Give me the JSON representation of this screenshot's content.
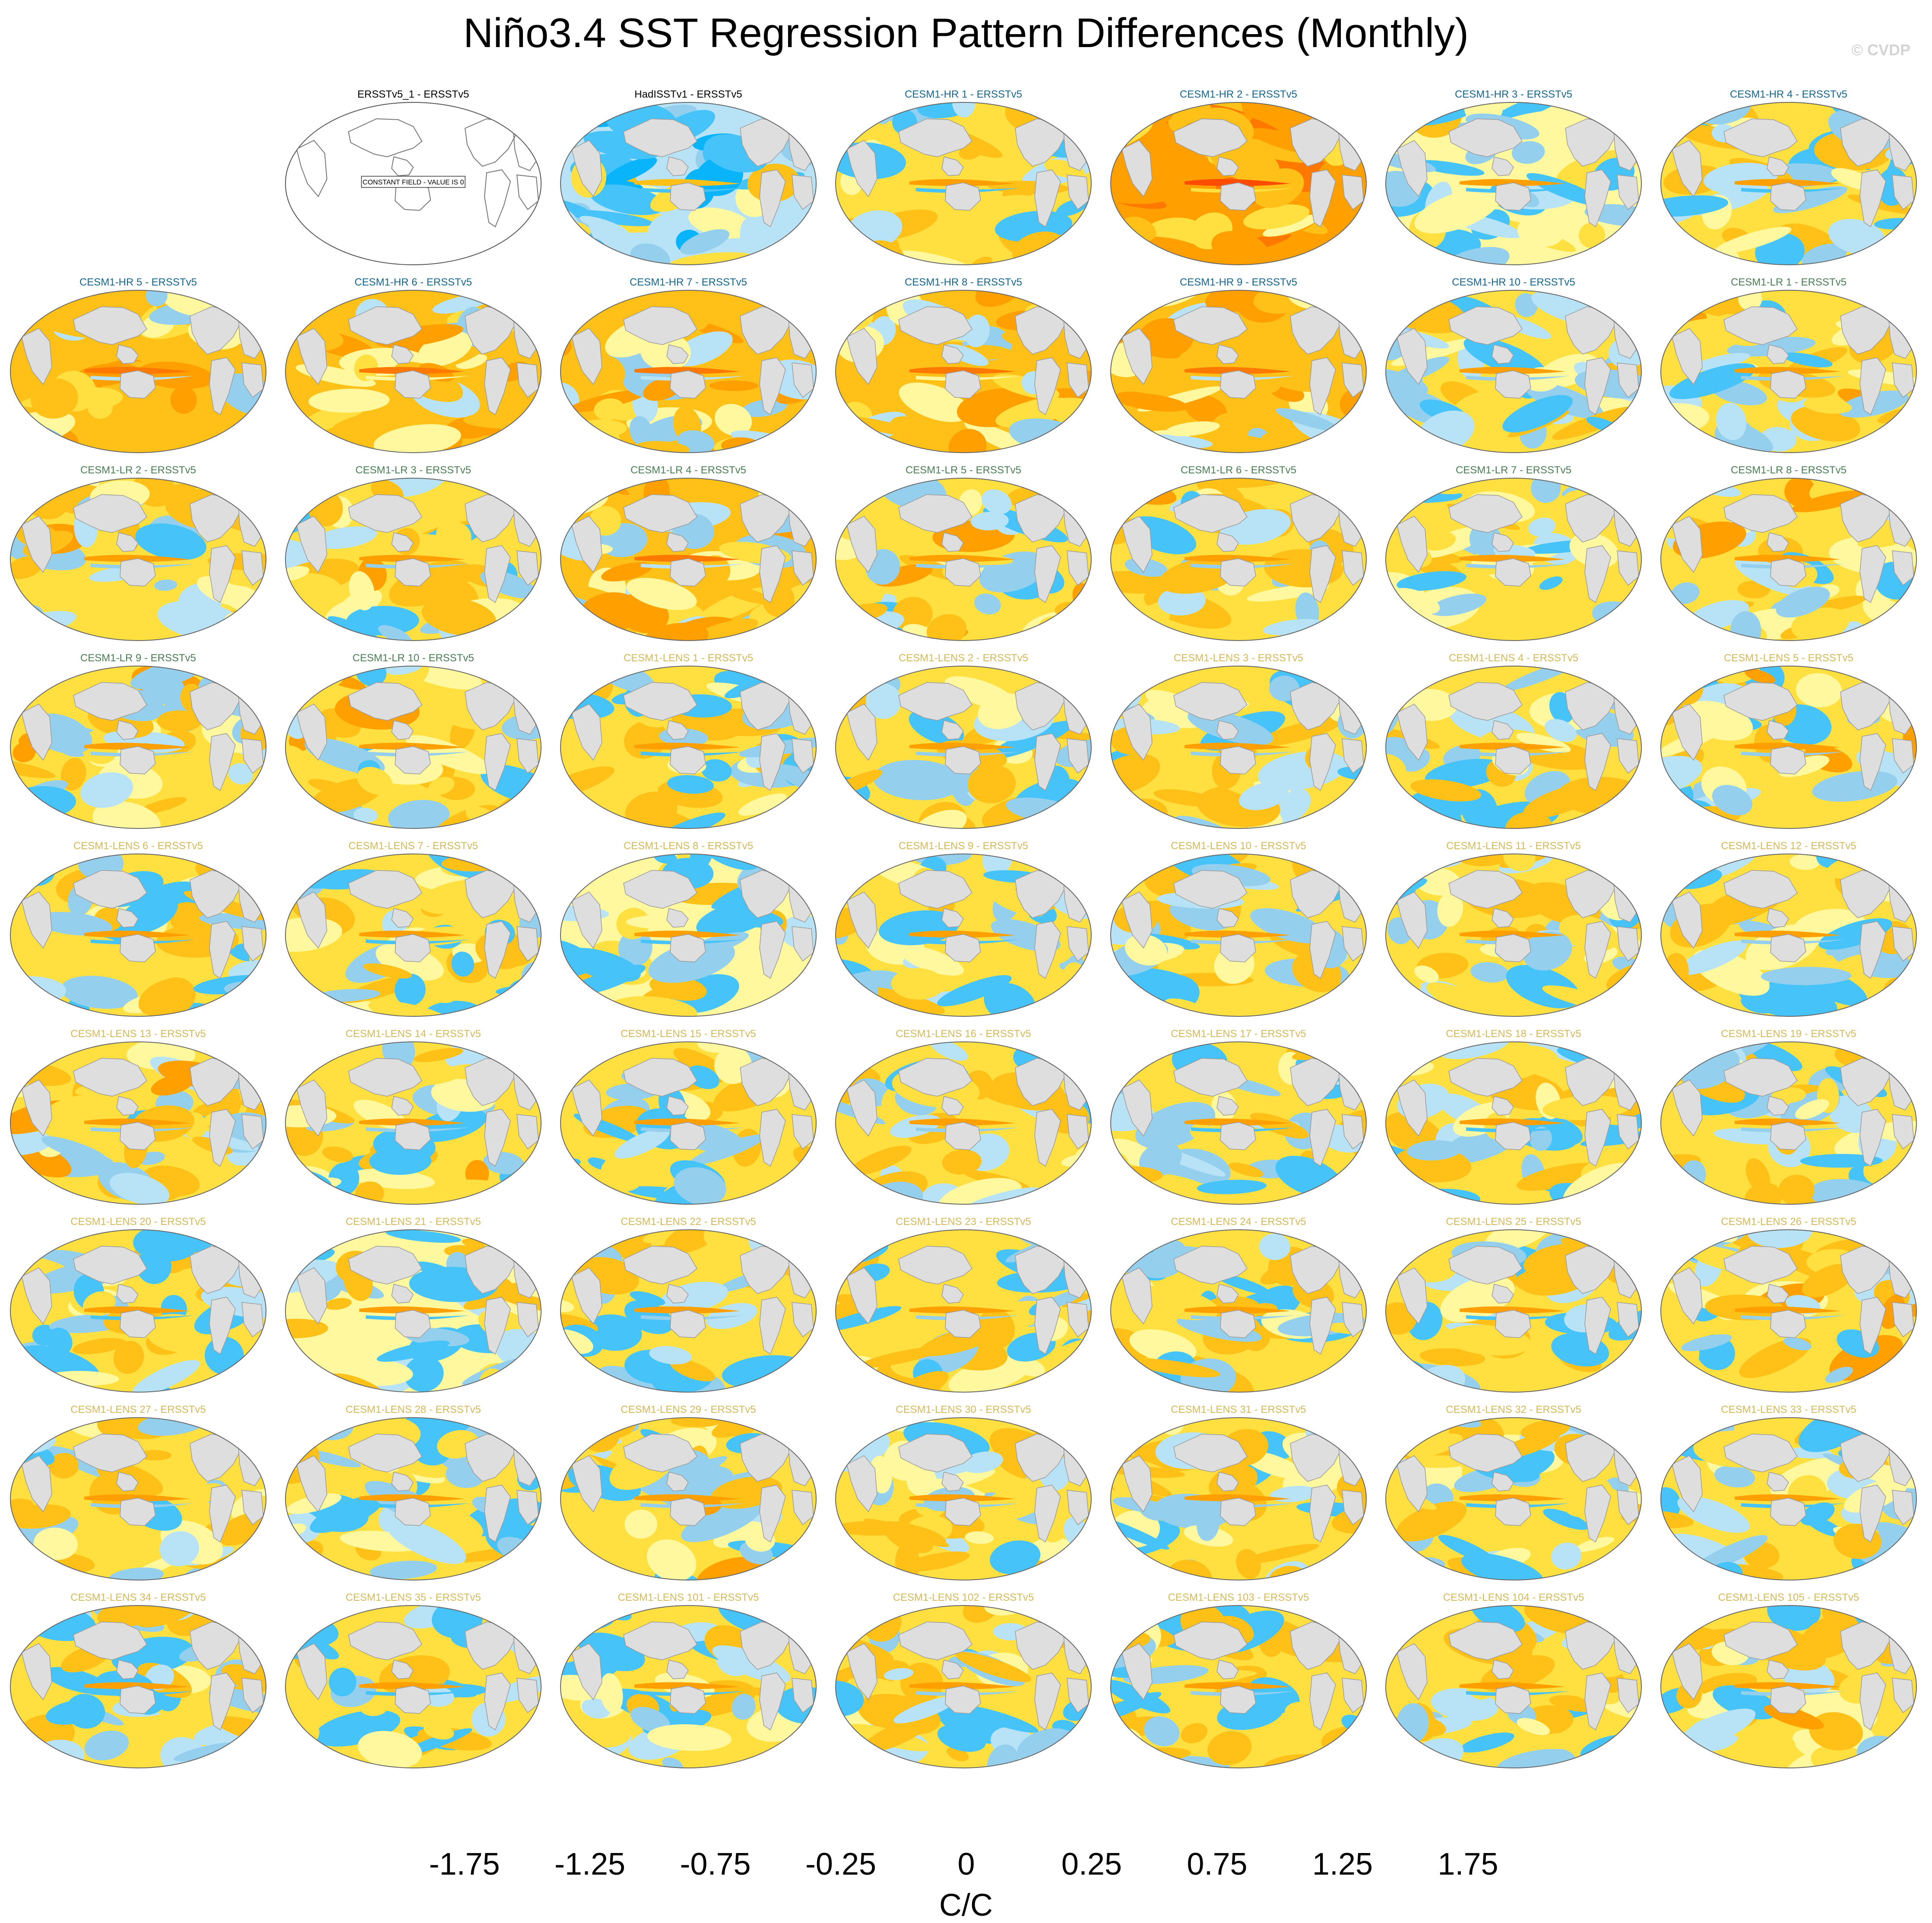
{
  "title": "Niño3.4 SST Regression Pattern Differences (Monthly)",
  "watermark": "© CVDP",
  "chart_data": {
    "type": "heatmap",
    "description_units": "C/C",
    "colorbar": {
      "unit_label": "C/C",
      "tick_labels": [
        "-1.75",
        "-1.25",
        "-0.75",
        "-0.25",
        "0",
        "0.25",
        "0.75",
        "1.25",
        "1.75"
      ],
      "colors": [
        "#7f20f0",
        "#3a10f4",
        "#1a2ef4",
        "#3960e0",
        "#2f74ea",
        "#2294f6",
        "#0ab4fa",
        "#46c4fa",
        "#94d0ee",
        "#b8e2f6",
        "#fff89e",
        "#ffe040",
        "#ffc018",
        "#ffa000",
        "#ff7800",
        "#ff4c00",
        "#ff0000",
        "#d40000",
        "#d83838",
        "#ffb4b4"
      ]
    },
    "title_colors": {
      "obs": "#000000",
      "CESM1-HR": "#17658a",
      "CESM1-LR": "#4a7d54",
      "CESM1-LENS": "#d4b95a"
    },
    "constant_field_text": "CONSTANT FIELD - VALUE IS 0",
    "panels": [
      {
        "label": "ERSSTv5_1 - ERSSTv5",
        "group": "obs",
        "constant": true
      },
      {
        "label": "HadISSTv1 - ERSSTv5",
        "group": "obs",
        "bias": -0.1
      },
      {
        "label": "CESM1-HR 1 - ERSSTv5",
        "group": "CESM1-HR",
        "bias": 0.05
      },
      {
        "label": "CESM1-HR 2 - ERSSTv5",
        "group": "CESM1-HR",
        "bias": 0.55
      },
      {
        "label": "CESM1-HR 3 - ERSSTv5",
        "group": "CESM1-HR",
        "bias": 0.0
      },
      {
        "label": "CESM1-HR 4 - ERSSTv5",
        "group": "CESM1-HR",
        "bias": 0.05
      },
      {
        "label": "CESM1-HR 5 - ERSSTv5",
        "group": "CESM1-HR",
        "bias": 0.25
      },
      {
        "label": "CESM1-HR 6 - ERSSTv5",
        "group": "CESM1-HR",
        "bias": 0.35
      },
      {
        "label": "CESM1-HR 7 - ERSSTv5",
        "group": "CESM1-HR",
        "bias": 0.3
      },
      {
        "label": "CESM1-HR 8 - ERSSTv5",
        "group": "CESM1-HR",
        "bias": 0.35
      },
      {
        "label": "CESM1-HR 9 - ERSSTv5",
        "group": "CESM1-HR",
        "bias": 0.3
      },
      {
        "label": "CESM1-HR 10 - ERSSTv5",
        "group": "CESM1-HR",
        "bias": 0.1
      },
      {
        "label": "CESM1-LR 1 - ERSSTv5",
        "group": "CESM1-LR",
        "bias": 0.15
      },
      {
        "label": "CESM1-LR 2 - ERSSTv5",
        "group": "CESM1-LR",
        "bias": 0.15
      },
      {
        "label": "CESM1-LR 3 - ERSSTv5",
        "group": "CESM1-LR",
        "bias": 0.15
      },
      {
        "label": "CESM1-LR 4 - ERSSTv5",
        "group": "CESM1-LR",
        "bias": 0.25
      },
      {
        "label": "CESM1-LR 5 - ERSSTv5",
        "group": "CESM1-LR",
        "bias": 0.15
      },
      {
        "label": "CESM1-LR 6 - ERSSTv5",
        "group": "CESM1-LR",
        "bias": 0.15
      },
      {
        "label": "CESM1-LR 7 - ERSSTv5",
        "group": "CESM1-LR",
        "bias": 0.15
      },
      {
        "label": "CESM1-LR 8 - ERSSTv5",
        "group": "CESM1-LR",
        "bias": 0.15
      },
      {
        "label": "CESM1-LR 9 - ERSSTv5",
        "group": "CESM1-LR",
        "bias": 0.15
      },
      {
        "label": "CESM1-LR 10 - ERSSTv5",
        "group": "CESM1-LR",
        "bias": 0.15
      },
      {
        "label": "CESM1-LENS 1 - ERSSTv5",
        "group": "CESM1-LENS",
        "bias": 0.05
      },
      {
        "label": "CESM1-LENS 2 - ERSSTv5",
        "group": "CESM1-LENS",
        "bias": 0.1
      },
      {
        "label": "CESM1-LENS 3 - ERSSTv5",
        "group": "CESM1-LENS",
        "bias": 0.1
      },
      {
        "label": "CESM1-LENS 4 - ERSSTv5",
        "group": "CESM1-LENS",
        "bias": 0.1
      },
      {
        "label": "CESM1-LENS 5 - ERSSTv5",
        "group": "CESM1-LENS",
        "bias": 0.15
      },
      {
        "label": "CESM1-LENS 6 - ERSSTv5",
        "group": "CESM1-LENS",
        "bias": 0.05
      },
      {
        "label": "CESM1-LENS 7 - ERSSTv5",
        "group": "CESM1-LENS",
        "bias": 0.05
      },
      {
        "label": "CESM1-LENS 8 - ERSSTv5",
        "group": "CESM1-LENS",
        "bias": 0.0
      },
      {
        "label": "CESM1-LENS 9 - ERSSTv5",
        "group": "CESM1-LENS",
        "bias": 0.05
      },
      {
        "label": "CESM1-LENS 10 - ERSSTv5",
        "group": "CESM1-LENS",
        "bias": 0.1
      },
      {
        "label": "CESM1-LENS 11 - ERSSTv5",
        "group": "CESM1-LENS",
        "bias": 0.1
      },
      {
        "label": "CESM1-LENS 12 - ERSSTv5",
        "group": "CESM1-LENS",
        "bias": 0.1
      },
      {
        "label": "CESM1-LENS 13 - ERSSTv5",
        "group": "CESM1-LENS",
        "bias": 0.15
      },
      {
        "label": "CESM1-LENS 14 - ERSSTv5",
        "group": "CESM1-LENS",
        "bias": 0.1
      },
      {
        "label": "CESM1-LENS 15 - ERSSTv5",
        "group": "CESM1-LENS",
        "bias": 0.1
      },
      {
        "label": "CESM1-LENS 16 - ERSSTv5",
        "group": "CESM1-LENS",
        "bias": 0.1
      },
      {
        "label": "CESM1-LENS 17 - ERSSTv5",
        "group": "CESM1-LENS",
        "bias": 0.05
      },
      {
        "label": "CESM1-LENS 18 - ERSSTv5",
        "group": "CESM1-LENS",
        "bias": 0.05
      },
      {
        "label": "CESM1-LENS 19 - ERSSTv5",
        "group": "CESM1-LENS",
        "bias": 0.1
      },
      {
        "label": "CESM1-LENS 20 - ERSSTv5",
        "group": "CESM1-LENS",
        "bias": 0.05
      },
      {
        "label": "CESM1-LENS 21 - ERSSTv5",
        "group": "CESM1-LENS",
        "bias": 0.0
      },
      {
        "label": "CESM1-LENS 22 - ERSSTv5",
        "group": "CESM1-LENS",
        "bias": 0.1
      },
      {
        "label": "CESM1-LENS 23 - ERSSTv5",
        "group": "CESM1-LENS",
        "bias": 0.1
      },
      {
        "label": "CESM1-LENS 24 - ERSSTv5",
        "group": "CESM1-LENS",
        "bias": 0.1
      },
      {
        "label": "CESM1-LENS 25 - ERSSTv5",
        "group": "CESM1-LENS",
        "bias": 0.05
      },
      {
        "label": "CESM1-LENS 26 - ERSSTv5",
        "group": "CESM1-LENS",
        "bias": 0.15
      },
      {
        "label": "CESM1-LENS 27 - ERSSTv5",
        "group": "CESM1-LENS",
        "bias": 0.1
      },
      {
        "label": "CESM1-LENS 28 - ERSSTv5",
        "group": "CESM1-LENS",
        "bias": 0.05
      },
      {
        "label": "CESM1-LENS 29 - ERSSTv5",
        "group": "CESM1-LENS",
        "bias": 0.15
      },
      {
        "label": "CESM1-LENS 30 - ERSSTv5",
        "group": "CESM1-LENS",
        "bias": 0.1
      },
      {
        "label": "CESM1-LENS 31 - ERSSTv5",
        "group": "CESM1-LENS",
        "bias": 0.1
      },
      {
        "label": "CESM1-LENS 32 - ERSSTv5",
        "group": "CESM1-LENS",
        "bias": 0.05
      },
      {
        "label": "CESM1-LENS 33 - ERSSTv5",
        "group": "CESM1-LENS",
        "bias": 0.05
      },
      {
        "label": "CESM1-LENS 34 - ERSSTv5",
        "group": "CESM1-LENS",
        "bias": 0.05
      },
      {
        "label": "CESM1-LENS 35 - ERSSTv5",
        "group": "CESM1-LENS",
        "bias": 0.05
      },
      {
        "label": "CESM1-LENS 101 - ERSSTv5",
        "group": "CESM1-LENS",
        "bias": 0.05
      },
      {
        "label": "CESM1-LENS 102 - ERSSTv5",
        "group": "CESM1-LENS",
        "bias": 0.1
      },
      {
        "label": "CESM1-LENS 103 - ERSSTv5",
        "group": "CESM1-LENS",
        "bias": 0.1
      },
      {
        "label": "CESM1-LENS 104 - ERSSTv5",
        "group": "CESM1-LENS",
        "bias": 0.05
      },
      {
        "label": "CESM1-LENS 105 - ERSSTv5",
        "group": "CESM1-LENS",
        "bias": 0.1
      }
    ]
  }
}
